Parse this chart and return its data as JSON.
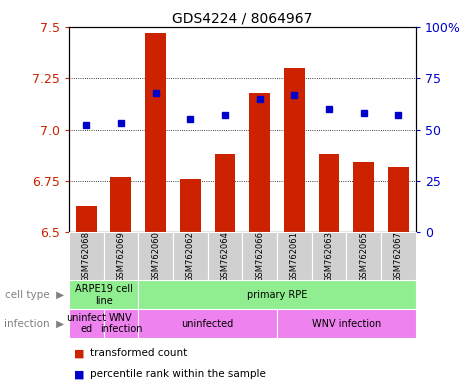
{
  "title": "GDS4224 / 8064967",
  "samples": [
    "GSM762068",
    "GSM762069",
    "GSM762060",
    "GSM762062",
    "GSM762064",
    "GSM762066",
    "GSM762061",
    "GSM762063",
    "GSM762065",
    "GSM762067"
  ],
  "transformed_counts": [
    6.63,
    6.77,
    7.47,
    6.76,
    6.88,
    7.18,
    7.3,
    6.88,
    6.84,
    6.82
  ],
  "percentile_ranks": [
    52,
    53,
    68,
    55,
    57,
    65,
    67,
    60,
    58,
    57
  ],
  "ylim_left": [
    6.5,
    7.5
  ],
  "ylim_right": [
    0,
    100
  ],
  "yticks_left": [
    6.5,
    6.75,
    7.0,
    7.25,
    7.5
  ],
  "yticks_right": [
    0,
    25,
    50,
    75,
    100
  ],
  "bar_color": "#cc2200",
  "dot_color": "#0000cc",
  "cell_type_groups": [
    {
      "label": "ARPE19 cell\nline",
      "start": 0,
      "end": 2,
      "color": "#90ee90"
    },
    {
      "label": "primary RPE",
      "start": 2,
      "end": 10,
      "color": "#90ee90"
    }
  ],
  "infection_groups": [
    {
      "label": "uninfect\ned",
      "start": 0,
      "end": 1,
      "color": "#ee82ee"
    },
    {
      "label": "WNV\ninfection",
      "start": 1,
      "end": 2,
      "color": "#ee82ee"
    },
    {
      "label": "uninfected",
      "start": 2,
      "end": 6,
      "color": "#ee82ee"
    },
    {
      "label": "WNV infection",
      "start": 6,
      "end": 10,
      "color": "#ee82ee"
    }
  ],
  "xlabel_bg_color": "#d0d0d0",
  "left_label_color": "#808080",
  "legend_square_size": 8
}
